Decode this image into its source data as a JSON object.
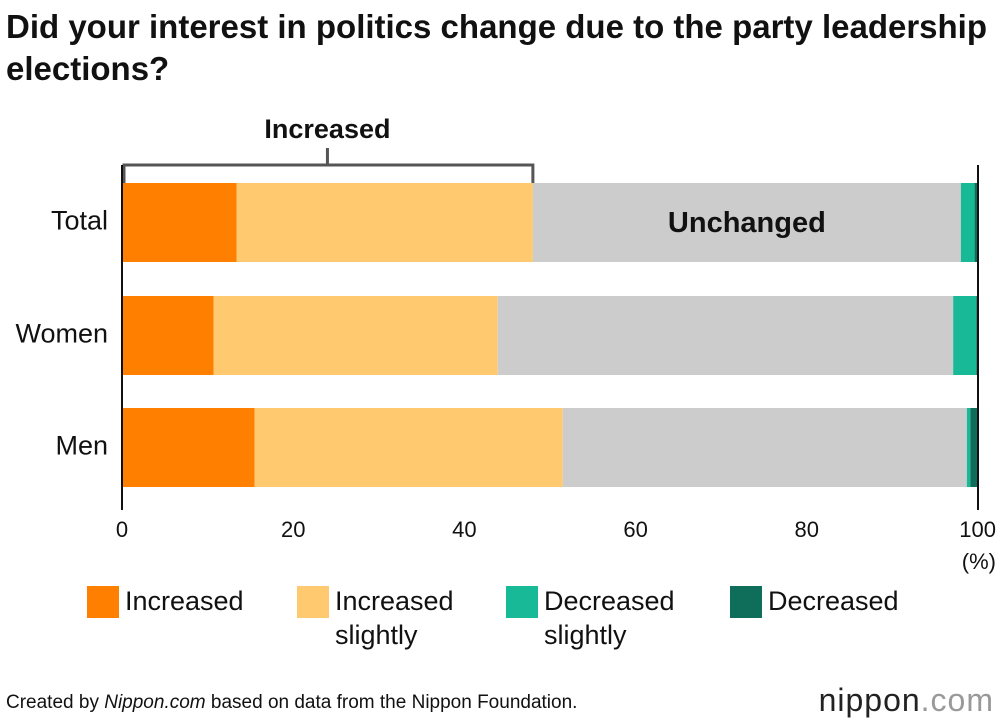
{
  "chart_data": {
    "type": "stacked_barh",
    "title": "Did your interest in politics change due to the party leadership elections?",
    "categories": [
      "Total",
      "Women",
      "Men"
    ],
    "series": [
      {
        "name": "Increased",
        "color": "#ff7f00",
        "values": [
          13.4,
          10.7,
          15.5
        ]
      },
      {
        "name": "Increased slightly",
        "color": "#fec96f",
        "values": [
          34.6,
          33.2,
          36.0
        ]
      },
      {
        "name": "Unchanged",
        "color": "#cccccc",
        "values": [
          50.0,
          53.2,
          47.2
        ],
        "in_legend": false
      },
      {
        "name": "Decreased slightly",
        "color": "#17b996",
        "values": [
          1.6,
          2.7,
          0.4
        ]
      },
      {
        "name": "Decreased",
        "color": "#0e6e5a",
        "values": [
          0.4,
          0.2,
          0.9
        ]
      }
    ],
    "annotations": [
      {
        "text": "Increased"
      }
    ],
    "xlim": [
      0,
      100
    ],
    "xticks": [
      0,
      20,
      40,
      60,
      80,
      100
    ],
    "xlabel": "(%)"
  },
  "source": [
    "Created by ",
    "Nippon.com",
    " based on data from the Nippon Foundation."
  ],
  "logo": [
    "nippon",
    ".com"
  ]
}
